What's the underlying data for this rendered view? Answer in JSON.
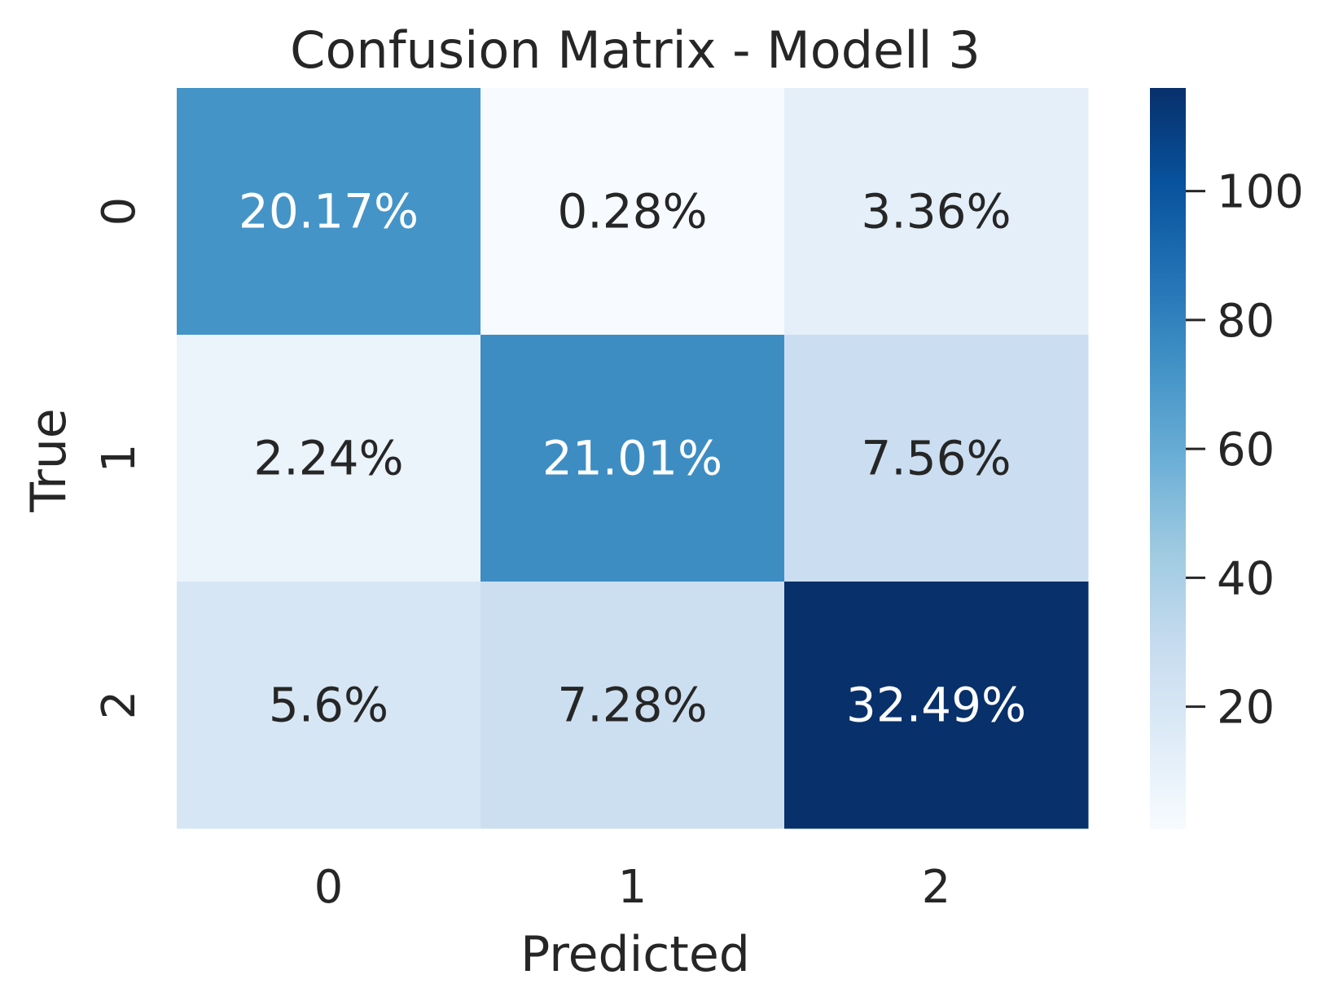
{
  "chart_data": {
    "type": "heatmap",
    "title": "Confusion Matrix - Modell 3",
    "xlabel": "Predicted",
    "ylabel": "True",
    "x_categories": [
      "0",
      "1",
      "2"
    ],
    "y_categories": [
      "0",
      "1",
      "2"
    ],
    "cell_labels": [
      [
        "20.17%",
        "0.28%",
        "3.36%"
      ],
      [
        "2.24%",
        "21.01%",
        "7.56%"
      ],
      [
        "5.6%",
        "7.28%",
        "32.49%"
      ]
    ],
    "values": [
      [
        72,
        1,
        12
      ],
      [
        8,
        75,
        27
      ],
      [
        20,
        26,
        116
      ]
    ],
    "colormap": "Blues",
    "colorbar": {
      "min": 1,
      "max": 116,
      "ticks": [
        "20",
        "40",
        "60",
        "80",
        "100"
      ]
    },
    "grid": false
  }
}
